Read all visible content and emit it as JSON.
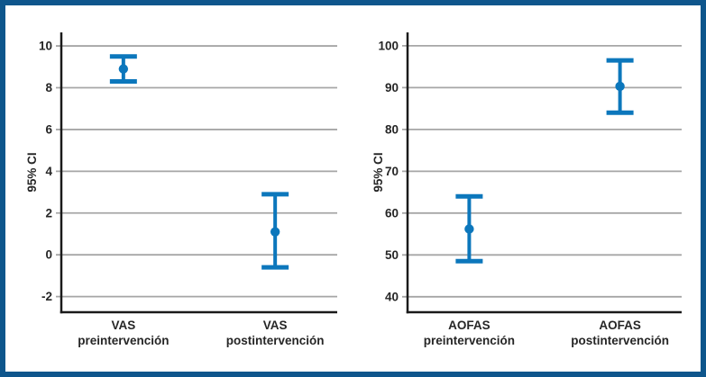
{
  "frame": {
    "border_color": "#0e568c",
    "background_color": "#ffffff"
  },
  "styles": {
    "accent_blue": "#0c77bc",
    "grid_color": "#a6a6a6",
    "axis_color": "#1a1a1a",
    "text_color": "#262626"
  },
  "chart_data": [
    {
      "type": "errorbar",
      "title": "",
      "xlabel": "",
      "ylabel": "95% CI",
      "yticks": [
        10,
        8,
        6,
        4,
        2,
        0,
        -2
      ],
      "ylim": [
        -2.75,
        10.65
      ],
      "grid": "horizontal",
      "legend": "none",
      "marker_color": "#0c77bc",
      "categories": [
        "VAS\npreintervención",
        "VAS\npostintervención"
      ],
      "points": [
        {
          "category": "VAS preintervención",
          "mean": 8.9,
          "ci_low": 8.3,
          "ci_high": 9.5
        },
        {
          "category": "VAS postintervención",
          "mean": 1.1,
          "ci_low": -0.6,
          "ci_high": 2.9
        }
      ]
    },
    {
      "type": "errorbar",
      "title": "",
      "xlabel": "",
      "ylabel": "95% CI",
      "yticks": [
        100,
        90,
        80,
        70,
        60,
        50,
        40
      ],
      "ylim": [
        36.3,
        103.2
      ],
      "grid": "horizontal",
      "legend": "none",
      "marker_color": "#0c77bc",
      "categories": [
        "AOFAS\npreintervención",
        "AOFAS\npostintervención"
      ],
      "points": [
        {
          "category": "AOFAS preintervención",
          "mean": 56.2,
          "ci_low": 48.5,
          "ci_high": 64.0
        },
        {
          "category": "AOFAS postintervención",
          "mean": 90.3,
          "ci_low": 84.0,
          "ci_high": 96.5
        }
      ]
    }
  ]
}
